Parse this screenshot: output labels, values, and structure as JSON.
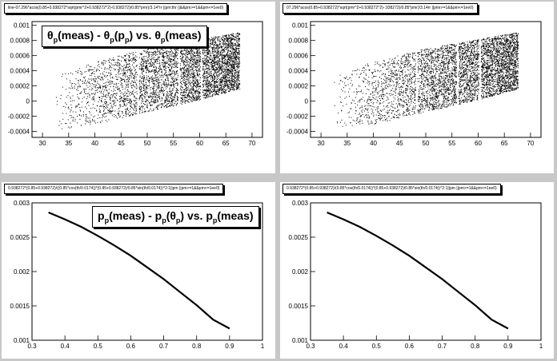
{
  "pads": [
    {
      "title": "line-07.296*acos(0.85+0.938272*sqrt(pmr^2+0.938272^2)-0.938272)/0.85*pmr)/3.14*rr ||pm:thr ||&&pm>=1&&pm<=1ee0)",
      "overlay": {
        "a": "θ",
        "a_sub": "p",
        "b": "(meas) - θ",
        "b_sub": "p",
        "c": "(p",
        "c_sub": "p",
        "d": ") vs. θ",
        "d_sub": "p",
        "e": "(meas)"
      },
      "ticks_x": [
        "30",
        "35",
        "40",
        "45",
        "50",
        "55",
        "60",
        "65",
        "70"
      ],
      "ticks_y": [
        "0.001",
        "0.0008",
        "0.0006",
        "0.0004",
        "0.0002",
        "0",
        "-0.0002",
        "-0.0004"
      ]
    },
    {
      "title": "07.296*acos(0.85+0.938272)*sqrt(pmr^2+0.938272^2)-.938272)/0.85*pmr)/3.14rr ||pmr>=1&&pm<=1ee0)",
      "ticks_x": [
        "30",
        "35",
        "40",
        "45",
        "50",
        "55",
        "60",
        "65",
        "70"
      ],
      "ticks_y": [
        "0.001",
        "0.0008",
        "0.0006",
        "0.0004",
        "0.0002",
        "0",
        "-0.0002",
        "-0.0004"
      ]
    },
    {
      "title": "0.938272*(0.85+0.938272)/((0.85*cos(th/0.0174))*(0.85+0.938272)/0.85*sin(th/0.0174))^2:1||pm ||pm>=1&&pm<=1ee0)",
      "overlay": {
        "a": "p",
        "a_sub": "p",
        "b": "(meas) - p",
        "b_sub": "p",
        "c": "(θ",
        "c_sub": "p",
        "d": ") vs. p",
        "d_sub": "p",
        "e": "(meas)"
      },
      "ticks_x": [
        "0.3",
        "0.4",
        "0.5",
        "0.6",
        "0.7",
        "0.8",
        "0.9",
        "1"
      ],
      "ticks_y": [
        "0.003",
        "0.0025",
        "0.002",
        "0.0015",
        "0.001"
      ]
    },
    {
      "title": "0.938272*(0.85+0.938272)/(0.85*cos(th/0.0174))*(0.85+0.938272)/0.85*sin(th/0.0174))^2:1||pm ||pm>=1&&pm<=1ee0)",
      "ticks_x": [
        "0.3",
        "0.4",
        "0.5",
        "0.6",
        "0.7",
        "0.8",
        "0.9",
        "1"
      ],
      "ticks_y": [
        "0.003",
        "0.0025",
        "0.002",
        "0.0015",
        "0.001"
      ]
    }
  ],
  "chart_data": [
    {
      "type": "scatter",
      "xlim": [
        28,
        72
      ],
      "ylim": [
        -0.00048,
        0.00105
      ],
      "band": {
        "x_range": [
          32.3,
          67.6
        ],
        "lower_edge": [
          [
            32.3,
            -0.00038
          ],
          [
            40,
            -0.0003
          ],
          [
            50,
            -0.00014
          ],
          [
            60,
            2e-05
          ],
          [
            67.6,
            0.00016
          ]
        ],
        "upper_edge": [
          [
            32.3,
            0.00036
          ],
          [
            40,
            0.00052
          ],
          [
            50,
            0.0007
          ],
          [
            60,
            0.00082
          ],
          [
            67.6,
            0.00091
          ]
        ]
      },
      "density_gaps_x": [
        48.2,
        56,
        60.3
      ],
      "grid": false
    },
    {
      "type": "scatter",
      "xlim": [
        28,
        72
      ],
      "ylim": [
        -0.00048,
        0.00105
      ],
      "band": {
        "x_range": [
          32.3,
          67.6
        ],
        "lower_edge": [
          [
            32.3,
            -0.00038
          ],
          [
            40,
            -0.0003
          ],
          [
            50,
            -0.00014
          ],
          [
            60,
            2e-05
          ],
          [
            67.6,
            0.00016
          ]
        ],
        "upper_edge": [
          [
            32.3,
            0.00036
          ],
          [
            40,
            0.00052
          ],
          [
            50,
            0.0007
          ],
          [
            60,
            0.00082
          ],
          [
            67.6,
            0.00091
          ]
        ]
      },
      "density_gaps_x": [
        48.2,
        56,
        60.3
      ],
      "grid": false
    },
    {
      "type": "line",
      "xlim": [
        0.3,
        1.0
      ],
      "ylim": [
        0.001,
        0.003
      ],
      "x": [
        0.35,
        0.4,
        0.45,
        0.5,
        0.55,
        0.6,
        0.65,
        0.7,
        0.75,
        0.8,
        0.85,
        0.9
      ],
      "y": [
        0.00286,
        0.00276,
        0.00265,
        0.00252,
        0.00238,
        0.00223,
        0.00206,
        0.00189,
        0.0017,
        0.00151,
        0.0013,
        0.00117
      ],
      "grid": false
    },
    {
      "type": "line",
      "xlim": [
        0.3,
        1.0
      ],
      "ylim": [
        0.001,
        0.003
      ],
      "x": [
        0.35,
        0.4,
        0.45,
        0.5,
        0.55,
        0.6,
        0.65,
        0.7,
        0.75,
        0.8,
        0.85,
        0.9
      ],
      "y": [
        0.00286,
        0.00276,
        0.00265,
        0.00252,
        0.00238,
        0.00223,
        0.00206,
        0.00189,
        0.0017,
        0.00151,
        0.0013,
        0.00117
      ],
      "grid": false
    }
  ]
}
